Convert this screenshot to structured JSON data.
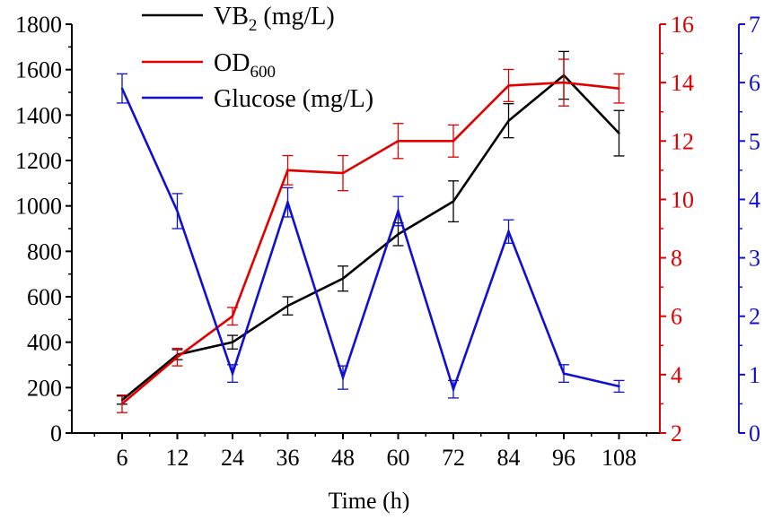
{
  "chart_data": {
    "type": "line",
    "xlabel": "Time (h)",
    "categories": [
      "6",
      "12",
      "24",
      "36",
      "48",
      "60",
      "72",
      "84",
      "96",
      "108"
    ],
    "left_axis": {
      "label": "",
      "range": [
        0,
        1800
      ],
      "ticks": [
        "0",
        "200",
        "400",
        "600",
        "800",
        "1000",
        "1200",
        "1400",
        "1600",
        "1800"
      ],
      "color": "#000000"
    },
    "right_axis_1": {
      "label": "",
      "range": [
        2,
        16
      ],
      "ticks": [
        "2",
        "4",
        "6",
        "8",
        "10",
        "12",
        "14",
        "16"
      ],
      "color": "#e00000"
    },
    "right_axis_2": {
      "label": "",
      "range": [
        0,
        7
      ],
      "ticks": [
        "0",
        "1",
        "2",
        "3",
        "4",
        "5",
        "6",
        "7"
      ],
      "color": "#1010d0"
    },
    "series": [
      {
        "name": "VB2 (mg/L)",
        "legend_main": "VB",
        "legend_sub": "2",
        "legend_tail": " (mg/L)",
        "axis": "left",
        "color": "#000000",
        "values": [
          145,
          345,
          400,
          560,
          680,
          875,
          1020,
          1375,
          1575,
          1320
        ],
        "errors": [
          18,
          22,
          30,
          40,
          55,
          50,
          90,
          75,
          105,
          100
        ]
      },
      {
        "name": "OD600",
        "legend_main": "OD",
        "legend_sub": "600",
        "legend_tail": "",
        "axis": "right1",
        "color": "#e00000",
        "values": [
          3.0,
          4.6,
          6.0,
          11.0,
          10.9,
          12.0,
          12.0,
          13.9,
          14.0,
          13.8
        ],
        "errors": [
          0.3,
          0.3,
          0.3,
          0.5,
          0.6,
          0.6,
          0.55,
          0.55,
          0.8,
          0.5
        ]
      },
      {
        "name": "Glucose (mg/L)",
        "legend_main": "Glucose (mg/L)",
        "legend_sub": "",
        "legend_tail": "",
        "axis": "right2",
        "color": "#1010d0",
        "values": [
          5.9,
          3.8,
          1.02,
          3.95,
          0.95,
          3.8,
          0.75,
          3.45,
          1.02,
          0.8
        ],
        "errors": [
          0.25,
          0.3,
          0.15,
          0.25,
          0.2,
          0.25,
          0.15,
          0.2,
          0.15,
          0.1
        ]
      }
    ]
  }
}
